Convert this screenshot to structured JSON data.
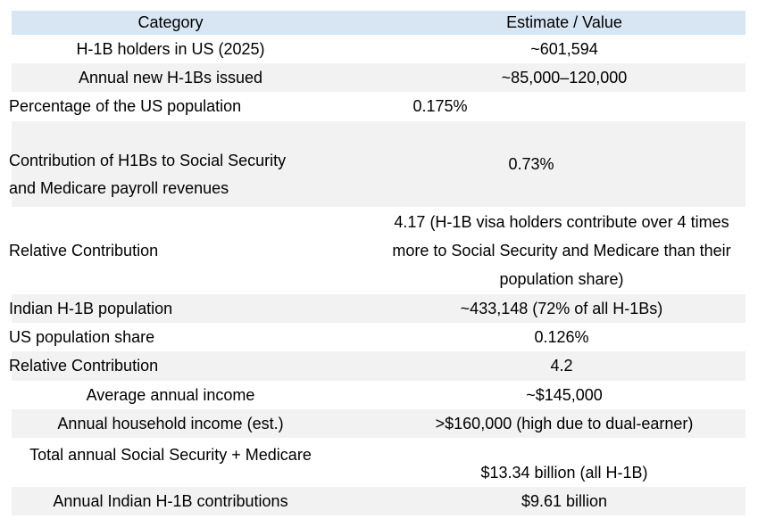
{
  "table": {
    "columns": [
      "Category",
      "Estimate / Value"
    ],
    "rows": [
      {
        "category": "H-1B holders in US (2025)",
        "value": "~601,594",
        "cat_align": "center"
      },
      {
        "category": "Annual new H-1Bs issued",
        "value": "~85,000–120,000",
        "cat_align": "center"
      },
      {
        "category": "Percentage of the US population",
        "value": "0.175%",
        "cat_align": "left"
      },
      {
        "category": "Contribution of H1Bs to Social Security and Medicare payroll revenues",
        "value": "0.73%",
        "cat_align": "left"
      },
      {
        "category": "Relative Contribution",
        "value": "4.17 (H-1B visa holders contribute over 4 times more to Social Security and Medicare than their population share)",
        "cat_align": "left"
      },
      {
        "category": "Indian H-1B population",
        "value": "~433,148 (72% of all H-1Bs)",
        "cat_align": "left"
      },
      {
        "category": "US population share",
        "value": "0.126%",
        "cat_align": "left"
      },
      {
        "category": "Relative Contribution",
        "value": "4.2",
        "cat_align": "left"
      },
      {
        "category": "Average annual income",
        "value": "~$145,000",
        "cat_align": "center"
      },
      {
        "category": "Annual household income (est.)",
        "value": ">$160,000 (high due to dual-earner)",
        "cat_align": "center"
      },
      {
        "category": "Total annual Social Security + Medicare",
        "value": "$13.34 billion (all H-1B)",
        "cat_align": "center"
      },
      {
        "category": "Annual Indian H-1B contributions",
        "value": "$9.61 billion",
        "cat_align": "center"
      }
    ]
  },
  "colors": {
    "header_background": "#d8e6f3",
    "alt_row_background": "#f2f2f2",
    "text": "#000000"
  }
}
